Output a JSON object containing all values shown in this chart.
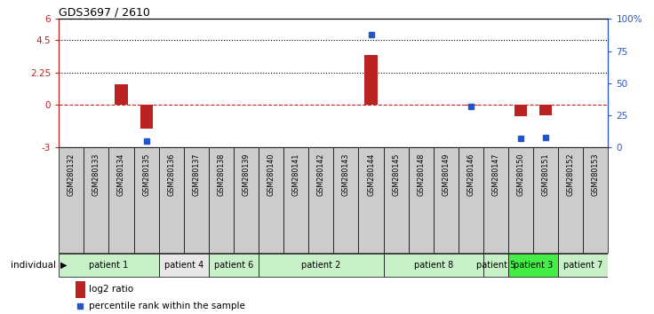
{
  "title": "GDS3697 / 2610",
  "samples": [
    "GSM280132",
    "GSM280133",
    "GSM280134",
    "GSM280135",
    "GSM280136",
    "GSM280137",
    "GSM280138",
    "GSM280139",
    "GSM280140",
    "GSM280141",
    "GSM280142",
    "GSM280143",
    "GSM280144",
    "GSM280145",
    "GSM280148",
    "GSM280149",
    "GSM280146",
    "GSM280147",
    "GSM280150",
    "GSM280151",
    "GSM280152",
    "GSM280153"
  ],
  "log2_ratio": [
    0,
    0,
    1.4,
    -1.7,
    0,
    0,
    0,
    0,
    0,
    0,
    0,
    0,
    3.5,
    0,
    0,
    0,
    -0.05,
    0,
    -0.8,
    -0.75,
    0,
    0
  ],
  "percentile": [
    null,
    null,
    null,
    5,
    null,
    null,
    null,
    null,
    null,
    null,
    null,
    null,
    88,
    null,
    null,
    null,
    32,
    null,
    7,
    8,
    null,
    null
  ],
  "patients": [
    {
      "label": "patient 1",
      "start": 0,
      "end": 4,
      "color": "#c8f0c8"
    },
    {
      "label": "patient 4",
      "start": 4,
      "end": 6,
      "color": "#e8e8e8"
    },
    {
      "label": "patient 6",
      "start": 6,
      "end": 8,
      "color": "#c8f0c8"
    },
    {
      "label": "patient 2",
      "start": 8,
      "end": 13,
      "color": "#c8f0c8"
    },
    {
      "label": "patient 8",
      "start": 13,
      "end": 17,
      "color": "#c8f0c8"
    },
    {
      "label": "patient 5",
      "start": 17,
      "end": 18,
      "color": "#c8f0c8"
    },
    {
      "label": "patient 3",
      "start": 18,
      "end": 20,
      "color": "#44ee44"
    },
    {
      "label": "patient 7",
      "start": 20,
      "end": 22,
      "color": "#c8f0c8"
    }
  ],
  "ylim_left": [
    -3,
    6
  ],
  "ylim_right": [
    0,
    100
  ],
  "yticks_left": [
    -3,
    0,
    2.25,
    4.5,
    6
  ],
  "yticks_right": [
    0,
    25,
    50,
    75,
    100
  ],
  "hlines_dotted": [
    4.5,
    2.25
  ],
  "hline_dashed": 0,
  "bar_color": "#bb2222",
  "dot_color": "#2255cc",
  "bg_color": "#ffffff",
  "plot_bg": "#ffffff",
  "sample_box_color": "#cccccc",
  "legend_items": [
    "log2 ratio",
    "percentile rank within the sample"
  ]
}
